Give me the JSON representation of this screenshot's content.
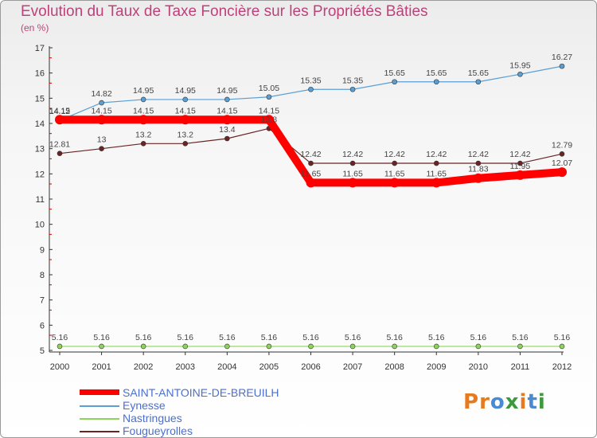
{
  "title": "Evolution du Taux de Taxe Foncière sur les Propriétés Bâties",
  "unit_label": "(en %)",
  "logo_text": "Proxiti",
  "colors": {
    "title": "#c0407a",
    "axis": "#333333",
    "tick_marks": "#d00000",
    "logo": [
      "#e87a1e",
      "#e87a1e",
      "#4a8ad4",
      "#3c9a3c",
      "#e87a1e",
      "#4a8ad4",
      "#3c9a3c"
    ]
  },
  "chart_data": {
    "type": "line",
    "title": "Evolution du Taux de Taxe Foncière sur les Propriétés Bâties",
    "ylabel": "(en %)",
    "xlabel": "",
    "x": [
      "2000",
      "2001",
      "2002",
      "2003",
      "2004",
      "2005",
      "2006",
      "2007",
      "2008",
      "2009",
      "2010",
      "2011",
      "2012"
    ],
    "ylim": [
      5,
      17
    ],
    "yticks": [
      "5",
      "6",
      "7",
      "8",
      "9",
      "10",
      "11",
      "12",
      "13",
      "14",
      "15",
      "16",
      "17"
    ],
    "legend_position": "bottom-left",
    "series": [
      {
        "name": "SAINT-ANTOINE-DE-BREUILH",
        "color": "#ff0000",
        "values": [
          14.15,
          14.15,
          14.15,
          14.15,
          14.15,
          14.15,
          11.65,
          11.65,
          11.65,
          11.65,
          11.83,
          11.95,
          12.07
        ],
        "labels": [
          "14.15",
          "14.15",
          "14.15",
          "14.15",
          "14.15",
          "14.15",
          "11.65",
          "11.65",
          "11.65",
          "11.65",
          "11.83",
          "11.95",
          "12.07"
        ]
      },
      {
        "name": "Eynesse",
        "color": "#5a9fd4",
        "values": [
          14.12,
          14.82,
          14.95,
          14.95,
          14.95,
          15.05,
          15.35,
          15.35,
          15.65,
          15.65,
          15.65,
          15.95,
          16.27
        ],
        "labels": [
          "14.12",
          "14.82",
          "14.95",
          "14.95",
          "14.95",
          "15.05",
          "15.35",
          "15.35",
          "15.65",
          "15.65",
          "15.65",
          "15.95",
          "16.27"
        ]
      },
      {
        "name": "Nastringues",
        "color": "#8fd45a",
        "values": [
          5.16,
          5.16,
          5.16,
          5.16,
          5.16,
          5.16,
          5.16,
          5.16,
          5.16,
          5.16,
          5.16,
          5.16,
          5.16
        ],
        "labels": [
          "5.16",
          "5.16",
          "5.16",
          "5.16",
          "5.16",
          "5.16",
          "5.16",
          "5.16",
          "5.16",
          "5.16",
          "5.16",
          "5.16",
          "5.16"
        ]
      },
      {
        "name": "Fougueyrolles",
        "color": "#6b2424",
        "values": [
          12.81,
          13,
          13.2,
          13.2,
          13.4,
          13.8,
          12.42,
          12.42,
          12.42,
          12.42,
          12.42,
          12.42,
          12.79
        ],
        "labels": [
          "12.81",
          "13",
          "13.2",
          "13.2",
          "13.4",
          "13.8",
          "12.42",
          "12.42",
          "12.42",
          "12.42",
          "12.42",
          "12.42",
          "12.79"
        ]
      }
    ]
  }
}
